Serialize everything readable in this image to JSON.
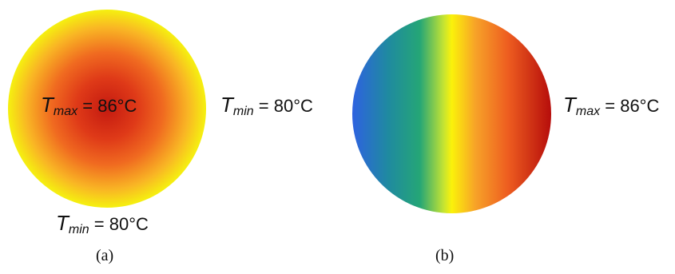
{
  "panel_a": {
    "disc_colors": {
      "center": "#c41a10",
      "edge": "#2f72c8"
    },
    "center_label": {
      "symbol": "T",
      "subscript": "max",
      "value": "= 86°C"
    },
    "right_label": {
      "symbol": "T",
      "subscript": "min",
      "value": "= 80°C"
    },
    "bottom_label": {
      "symbol": "T",
      "subscript": "min",
      "value": "= 80°C"
    },
    "caption": "(a)"
  },
  "panel_b": {
    "disc_colors": {
      "left": "#2e62e0",
      "right": "#b60d0b"
    },
    "right_label": {
      "symbol": "T",
      "subscript": "max",
      "value": "= 86°C"
    },
    "caption": "(b)"
  }
}
